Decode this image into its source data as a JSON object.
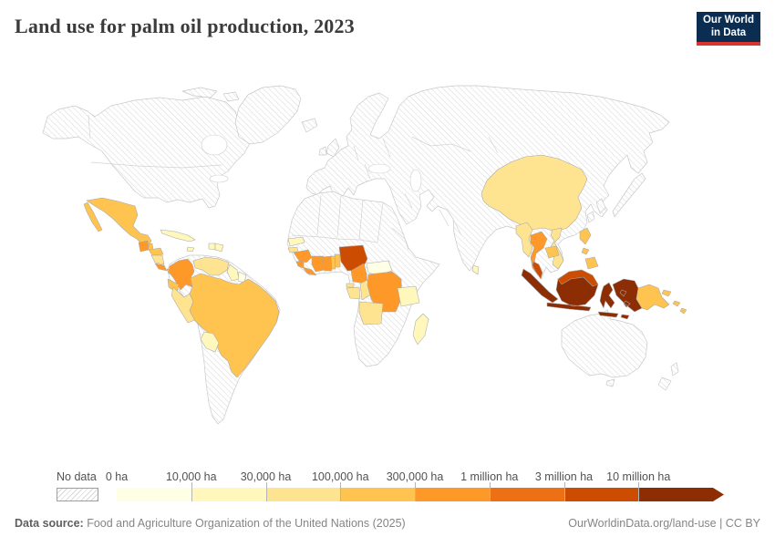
{
  "header": {
    "title": "Land use for palm oil production, 2023",
    "logo": {
      "line1": "Our World",
      "line2": "in Data",
      "bg": "#0b2d52",
      "accent": "#d8352e"
    }
  },
  "legend": {
    "no_data_label": "No data",
    "tick_labels": [
      "0 ha",
      "10,000 ha",
      "30,000 ha",
      "100,000 ha",
      "300,000 ha",
      "1 million ha",
      "3 million ha",
      "10 million ha"
    ],
    "colors": [
      "#ffffe5",
      "#fff7bc",
      "#fee391",
      "#fec44f",
      "#fe9929",
      "#ec7014",
      "#cc4c02",
      "#8c2d04"
    ]
  },
  "footer": {
    "source_label": "Data source:",
    "source_text": " Food and Agriculture Organization of the United Nations (2025)",
    "link_text": "OurWorldinData.org/land-use | CC BY"
  },
  "chart_data": {
    "type": "choropleth_map",
    "title": "Land use for palm oil production, 2023",
    "unit": "hectares",
    "scale": "log-binned",
    "legend_bins": [
      "0 ha",
      "10,000 ha",
      "30,000 ha",
      "100,000 ha",
      "300,000 ha",
      "1 million ha",
      "3 million ha",
      "10 million ha"
    ],
    "bin_colors": [
      "#ffffe5",
      "#fff7bc",
      "#fee391",
      "#fec44f",
      "#fe9929",
      "#ec7014",
      "#cc4c02",
      "#8c2d04"
    ],
    "no_data_style": "diagonal-hatch",
    "countries": [
      {
        "name": "Indonesia",
        "bin": "10 million ha and over",
        "color": "#8c2d04"
      },
      {
        "name": "Malaysia",
        "bin": "3-10 million ha",
        "color": "#cc4c02"
      },
      {
        "name": "Nigeria",
        "bin": "3-10 million ha",
        "color": "#cc4c02"
      },
      {
        "name": "Thailand",
        "bin": "300,000-1 million ha",
        "color": "#fe9929"
      },
      {
        "name": "Colombia",
        "bin": "300,000-1 million ha",
        "color": "#fe9929"
      },
      {
        "name": "Guatemala",
        "bin": "300,000-1 million ha",
        "color": "#fe9929"
      },
      {
        "name": "Costa Rica",
        "bin": "300,000-1 million ha",
        "color": "#fe9929"
      },
      {
        "name": "Guinea",
        "bin": "300,000-1 million ha",
        "color": "#fe9929"
      },
      {
        "name": "Sierra Leone",
        "bin": "300,000-1 million ha",
        "color": "#fe9929"
      },
      {
        "name": "Liberia",
        "bin": "300,000-1 million ha",
        "color": "#fe9929"
      },
      {
        "name": "Cote d'Ivoire",
        "bin": "300,000-1 million ha",
        "color": "#fe9929"
      },
      {
        "name": "Ghana",
        "bin": "300,000-1 million ha",
        "color": "#fe9929"
      },
      {
        "name": "Cameroon",
        "bin": "300,000-1 million ha",
        "color": "#fe9929"
      },
      {
        "name": "Democratic Republic of Congo",
        "bin": "300,000-1 million ha",
        "color": "#fe9929"
      },
      {
        "name": "Mexico",
        "bin": "100,000-300,000 ha",
        "color": "#fec44f"
      },
      {
        "name": "Belize",
        "bin": "100,000-300,000 ha",
        "color": "#fec44f"
      },
      {
        "name": "Honduras",
        "bin": "100,000-300,000 ha",
        "color": "#fec44f"
      },
      {
        "name": "Panama",
        "bin": "100,000-300,000 ha",
        "color": "#fec44f"
      },
      {
        "name": "Ecuador",
        "bin": "100,000-300,000 ha",
        "color": "#fec44f"
      },
      {
        "name": "Brazil",
        "bin": "100,000-300,000 ha",
        "color": "#fec44f"
      },
      {
        "name": "Togo",
        "bin": "100,000-300,000 ha",
        "color": "#fec44f"
      },
      {
        "name": "Benin",
        "bin": "100,000-300,000 ha",
        "color": "#fec44f"
      },
      {
        "name": "Cambodia",
        "bin": "100,000-300,000 ha",
        "color": "#fec44f"
      },
      {
        "name": "Philippines",
        "bin": "100,000-300,000 ha",
        "color": "#fec44f"
      },
      {
        "name": "Papua New Guinea",
        "bin": "100,000-300,000 ha",
        "color": "#fec44f"
      },
      {
        "name": "Solomon Islands",
        "bin": "100,000-300,000 ha",
        "color": "#fec44f"
      },
      {
        "name": "China",
        "bin": "30,000-100,000 ha",
        "color": "#fee391"
      },
      {
        "name": "Myanmar",
        "bin": "30,000-100,000 ha",
        "color": "#fee391"
      },
      {
        "name": "Vietnam",
        "bin": "30,000-100,000 ha",
        "color": "#fee391"
      },
      {
        "name": "Venezuela",
        "bin": "30,000-100,000 ha",
        "color": "#fee391"
      },
      {
        "name": "Peru",
        "bin": "30,000-100,000 ha",
        "color": "#fee391"
      },
      {
        "name": "Nicaragua",
        "bin": "30,000-100,000 ha",
        "color": "#fee391"
      },
      {
        "name": "Gabon",
        "bin": "30,000-100,000 ha",
        "color": "#fee391"
      },
      {
        "name": "Republic of Congo",
        "bin": "30,000-100,000 ha",
        "color": "#fee391"
      },
      {
        "name": "Angola",
        "bin": "30,000-100,000 ha",
        "color": "#fee391"
      },
      {
        "name": "Equatorial Guinea",
        "bin": "30,000-100,000 ha",
        "color": "#fee391"
      },
      {
        "name": "Guinea-Bissau",
        "bin": "30,000-100,000 ha",
        "color": "#fee391"
      },
      {
        "name": "Paraguay",
        "bin": "10,000-30,000 ha",
        "color": "#fff7bc"
      },
      {
        "name": "Guyana",
        "bin": "10,000-30,000 ha",
        "color": "#fff7bc"
      },
      {
        "name": "Cuba",
        "bin": "10,000-30,000 ha",
        "color": "#fff7bc"
      },
      {
        "name": "Jamaica",
        "bin": "10,000-30,000 ha",
        "color": "#fff7bc"
      },
      {
        "name": "Haiti",
        "bin": "10,000-30,000 ha",
        "color": "#fff7bc"
      },
      {
        "name": "Dominican Republic",
        "bin": "10,000-30,000 ha",
        "color": "#fff7bc"
      },
      {
        "name": "Senegal",
        "bin": "10,000-30,000 ha",
        "color": "#fff7bc"
      },
      {
        "name": "Tanzania",
        "bin": "10,000-30,000 ha",
        "color": "#fff7bc"
      },
      {
        "name": "Madagascar",
        "bin": "10,000-30,000 ha",
        "color": "#fff7bc"
      },
      {
        "name": "Sri Lanka",
        "bin": "10,000-30,000 ha",
        "color": "#fff7bc"
      },
      {
        "name": "Suriname",
        "bin": "0-10,000 ha",
        "color": "#ffffe5"
      },
      {
        "name": "Central African Republic",
        "bin": "0-10,000 ha",
        "color": "#ffffe5"
      }
    ]
  }
}
